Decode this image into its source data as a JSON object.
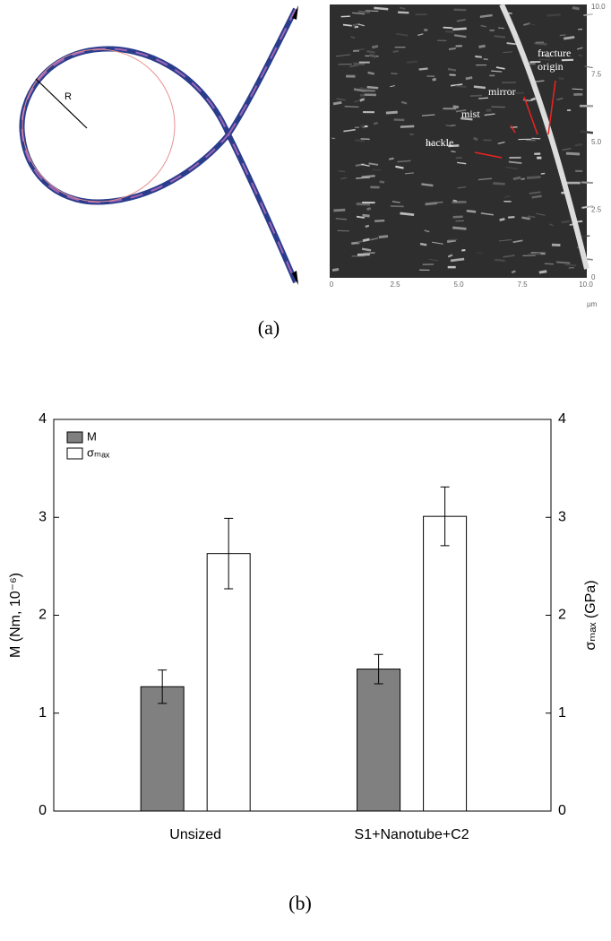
{
  "panel_a": {
    "radius_label": "R",
    "sem": {
      "x_ticks": [
        "0",
        "2.5",
        "5.0",
        "7.5",
        "10.0"
      ],
      "y_ticks": [
        "10.0",
        "7.5",
        "5.0",
        "2.5",
        "0"
      ],
      "unit": "µm",
      "annotations": [
        "fracture",
        "origin",
        "mirror",
        "mist",
        "hackle"
      ]
    },
    "caption": "(a)"
  },
  "chart_data": {
    "type": "bar",
    "categories": [
      "Unsized",
      "S1+Nanotube+C2"
    ],
    "ylabel": "M (Nm, 10⁻⁶)",
    "y2label": "σₘₐₓ (GPa)",
    "ylim": [
      0,
      4
    ],
    "yticks": [
      0,
      1,
      2,
      3,
      4
    ],
    "y2lim": [
      0,
      4
    ],
    "y2ticks": [
      0,
      1,
      2,
      3,
      4
    ],
    "legend": "upper left",
    "series": [
      {
        "name": "M",
        "color": "#808080",
        "values": [
          1.27,
          1.45
        ],
        "errors": [
          0.17,
          0.15
        ]
      },
      {
        "name": "σₘₐₓ",
        "color": "#ffffff",
        "axis": "y2",
        "values": [
          2.63,
          3.01
        ],
        "errors": [
          0.36,
          0.3
        ]
      }
    ]
  },
  "caption_b": "(b)"
}
